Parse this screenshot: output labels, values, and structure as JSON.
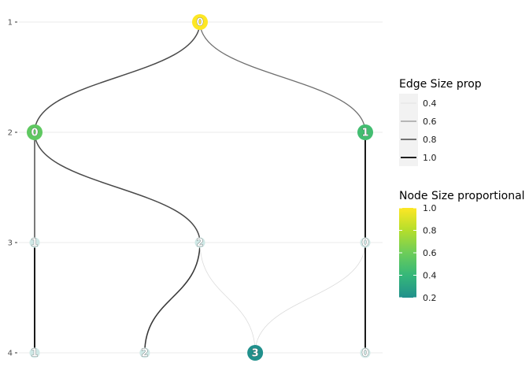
{
  "chart_data": {
    "type": "tree",
    "ylim": [
      1,
      4
    ],
    "yticks": [
      "1",
      "2",
      "3",
      "4"
    ],
    "nodes": [
      {
        "id": "n0",
        "label": "0",
        "level": 1,
        "x": 0.5,
        "prop": 1.0
      },
      {
        "id": "n1",
        "label": "0",
        "level": 2,
        "x": 0.0,
        "prop": 0.55
      },
      {
        "id": "n2",
        "label": "1",
        "level": 2,
        "x": 1.0,
        "prop": 0.45
      },
      {
        "id": "n3",
        "label": "1",
        "level": 3,
        "x": 0.0,
        "prop": 0.12
      },
      {
        "id": "n4",
        "label": "2",
        "level": 3,
        "x": 0.5,
        "prop": 0.12
      },
      {
        "id": "n5",
        "label": "0",
        "level": 3,
        "x": 1.0,
        "prop": 0.12
      },
      {
        "id": "n6",
        "label": "1",
        "level": 4,
        "x": 0.0,
        "prop": 0.12
      },
      {
        "id": "n7",
        "label": "2",
        "level": 4,
        "x": 0.333,
        "prop": 0.12
      },
      {
        "id": "n8",
        "label": "3",
        "level": 4,
        "x": 0.667,
        "prop": 0.2
      },
      {
        "id": "n9",
        "label": "0",
        "level": 4,
        "x": 1.0,
        "prop": 0.12
      }
    ],
    "edges": [
      {
        "from": "n0",
        "to": "n1",
        "prop": 0.8
      },
      {
        "from": "n0",
        "to": "n2",
        "prop": 0.7
      },
      {
        "from": "n1",
        "to": "n3",
        "prop": 0.8
      },
      {
        "from": "n1",
        "to": "n4",
        "prop": 0.8
      },
      {
        "from": "n2",
        "to": "n5",
        "prop": 1.0
      },
      {
        "from": "n3",
        "to": "n6",
        "prop": 1.0
      },
      {
        "from": "n4",
        "to": "n7",
        "prop": 0.85
      },
      {
        "from": "n4",
        "to": "n8",
        "prop": 0.4
      },
      {
        "from": "n5",
        "to": "n8",
        "prop": 0.4
      },
      {
        "from": "n5",
        "to": "n9",
        "prop": 1.0
      }
    ],
    "legend_edge": {
      "title": "Edge Size prop",
      "items": [
        {
          "label": "0.4",
          "value": 0.4
        },
        {
          "label": "0.6",
          "value": 0.6
        },
        {
          "label": "0.8",
          "value": 0.8
        },
        {
          "label": "1.0",
          "value": 1.0
        }
      ]
    },
    "legend_node": {
      "title": "Node Size proportional",
      "ticks": [
        {
          "label": "1.0",
          "value": 1.0
        },
        {
          "label": "0.8",
          "value": 0.8
        },
        {
          "label": "0.6",
          "value": 0.6
        },
        {
          "label": "0.4",
          "value": 0.4
        },
        {
          "label": "0.2",
          "value": 0.2
        }
      ],
      "range": [
        0.2,
        1.0
      ],
      "colors": [
        "#21908C",
        "#35B779",
        "#8FD744",
        "#FDE725"
      ]
    },
    "grid": true,
    "legend_position": "right"
  }
}
